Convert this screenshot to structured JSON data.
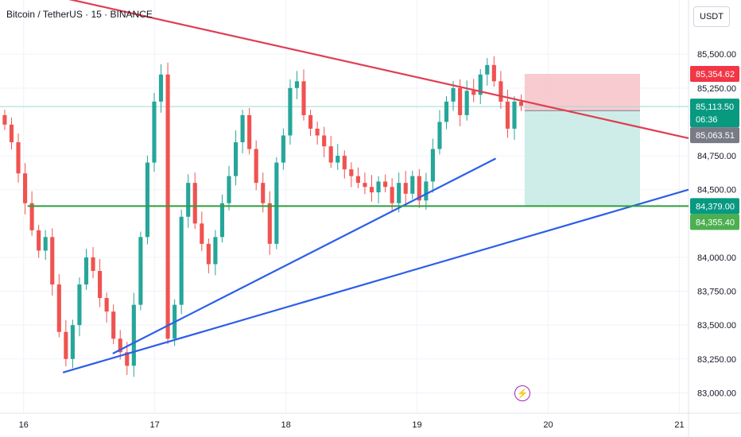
{
  "header": {
    "title": "Bitcoin / TetherUS · 15 · BINANCE",
    "currency": "USDT"
  },
  "events": {
    "icon": "lightning-icon"
  },
  "chart_data": {
    "type": "candlestick",
    "title": "Bitcoin / TetherUS · 15 · BINANCE",
    "x": [
      "16",
      "17",
      "18",
      "19",
      "20",
      "21"
    ],
    "x_range": [
      15.82,
      21.07
    ],
    "ylim": [
      82850,
      85900
    ],
    "y_ticks": [
      "85,500.00",
      "85,250.00",
      "84,750.00",
      "84,500.00",
      "84,000.00",
      "83,750.00",
      "83,500.00",
      "83,250.00",
      "83,000.00"
    ],
    "y_tick_values": [
      85500,
      85250,
      84750,
      84500,
      84000,
      83750,
      83500,
      83250,
      83000
    ],
    "grid": true,
    "colors": {
      "up": "#26a69a",
      "down": "#ef5350",
      "bg": "#ffffff"
    },
    "candles_close": [
      84980,
      84850,
      84620,
      84400,
      84200,
      84050,
      84150,
      83800,
      83450,
      83250,
      83500,
      83800,
      84000,
      83900,
      83700,
      83600,
      83400,
      83300,
      83200,
      83650,
      84150,
      84700,
      85150,
      85350,
      83400,
      83650,
      84300,
      84550,
      84250,
      84100,
      83950,
      84150,
      84400,
      84600,
      84850,
      85050,
      84800,
      84550,
      84400,
      84100,
      84700,
      84900,
      85250,
      85300,
      85050,
      84950,
      84900,
      84820,
      84700,
      84750,
      84650,
      84600,
      84550,
      84520,
      84480,
      84560,
      84520,
      84400,
      84550,
      84470,
      84600,
      84420,
      84560,
      84800,
      85000,
      85150,
      85250,
      85050,
      85230,
      85200,
      85350,
      85420,
      85300,
      85150,
      84950,
      85150,
      85120
    ],
    "overlays": {
      "descending_trendline": {
        "color": "#e03e52",
        "from": [
          15.82,
          86020
        ],
        "to": [
          21.07,
          84880
        ]
      },
      "ascending_trendline_1": {
        "color": "#2c5ee8",
        "from": [
          16.68,
          83290
        ],
        "to": [
          19.6,
          84730
        ]
      },
      "ascending_trendline_2": {
        "color": "#2c5ee8",
        "from": [
          16.3,
          83150
        ],
        "to": [
          21.07,
          84500
        ]
      },
      "support_line": {
        "color": "#2e9e3e",
        "price": 84379
      },
      "reference_line": {
        "color": "#a3d9d1",
        "price": 85113.5
      },
      "position": {
        "x_range": [
          19.82,
          20.7
        ],
        "entry": 85083,
        "stop": 85354.62,
        "target": 84379,
        "risk_color": "#f7c5cb",
        "reward_color": "#c9ebe6"
      }
    },
    "price_labels": [
      {
        "value": 85354.62,
        "text": "85,354.62",
        "color": "#f23645",
        "time": ""
      },
      {
        "value": 85113.5,
        "text": "85,113.50",
        "color": "#089981",
        "time": "06:36"
      },
      {
        "value": 85063.51,
        "text": "85,063.51",
        "color": "#787b86",
        "time": ""
      },
      {
        "value": 84379.0,
        "text": "84,379.00",
        "color": "#089981",
        "time": ""
      },
      {
        "value": 84355.4,
        "text": "84,355.40",
        "color": "#4caf50",
        "time": ""
      }
    ]
  }
}
